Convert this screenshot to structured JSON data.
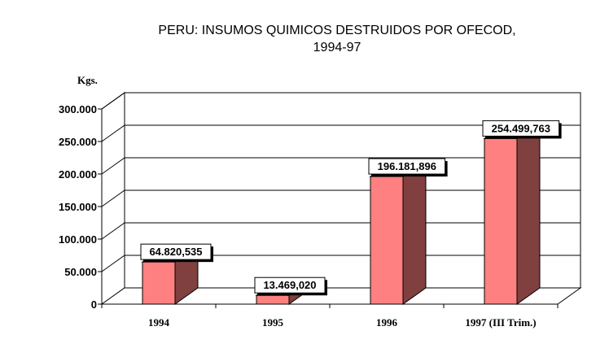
{
  "chart_data": {
    "type": "bar",
    "title_line1": "PERU: INSUMOS QUIMICOS DESTRUIDOS POR OFECOD,",
    "title_line2": "1994-97",
    "unit_label": "Kgs.",
    "categories": [
      "1994",
      "1995",
      "1996",
      "1997 (III Trim.)"
    ],
    "values": [
      64820.535,
      13469.02,
      196181.896,
      254499.763
    ],
    "value_labels": [
      "64.820,535",
      "13.469,020",
      "196.181,896",
      "254.499,763"
    ],
    "ylim": [
      0,
      300000
    ],
    "yticks": [
      0,
      50000,
      100000,
      150000,
      200000,
      250000,
      300000
    ],
    "ytick_labels": [
      "0",
      "50.000",
      "100.000",
      "150.000",
      "200.000",
      "250.000",
      "300.000"
    ],
    "grid": true,
    "colors": {
      "bar_front": "#ff8080",
      "bar_side": "#804040",
      "bar_top": "#c06060"
    }
  }
}
